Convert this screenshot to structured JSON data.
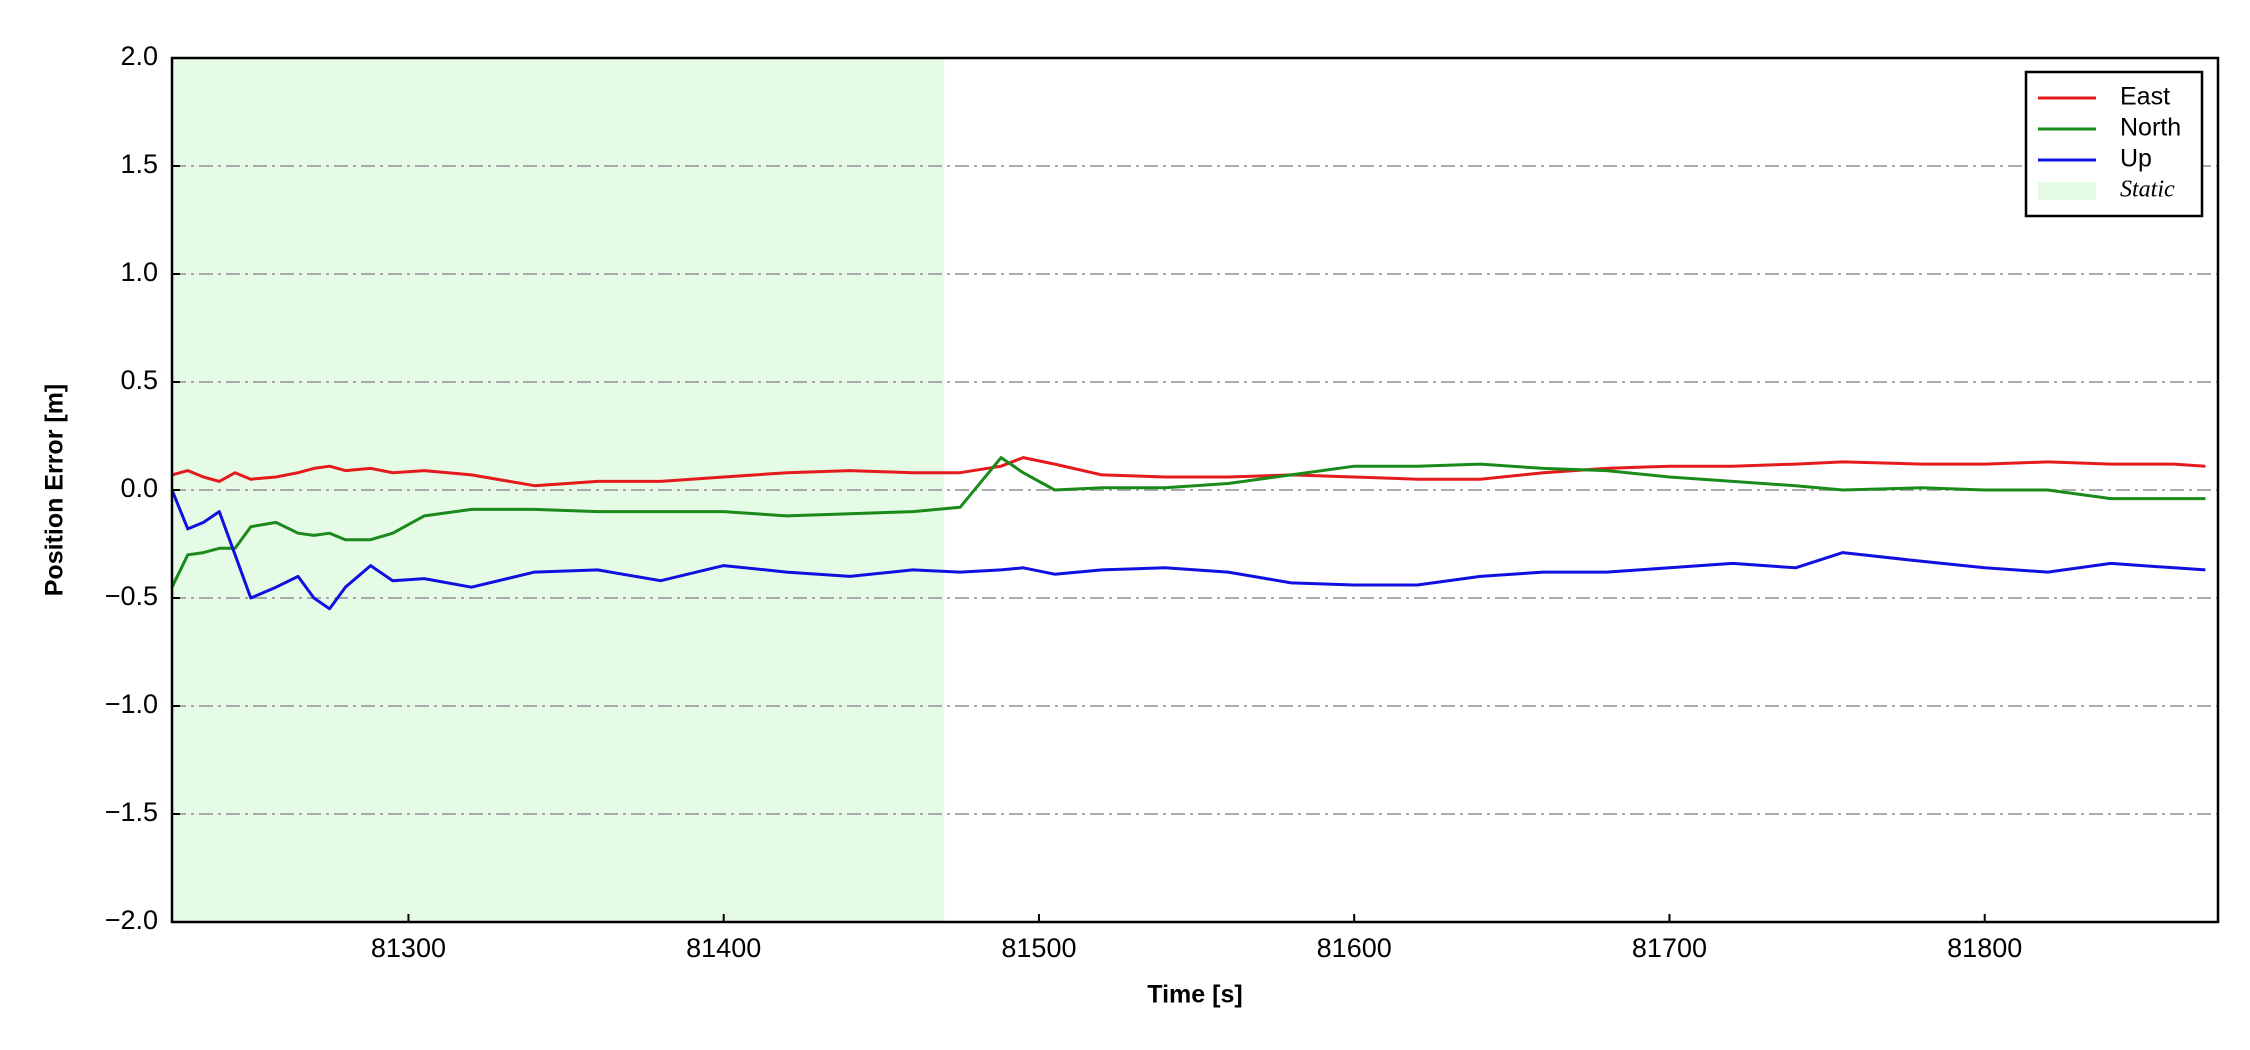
{
  "chart_data": {
    "type": "line",
    "xlabel": "Time [s]",
    "ylabel": "Position Error [m]",
    "x": [
      81225,
      81230,
      81235,
      81240,
      81245,
      81250,
      81258,
      81265,
      81270,
      81275,
      81280,
      81288,
      81295,
      81305,
      81320,
      81340,
      81360,
      81380,
      81400,
      81420,
      81440,
      81460,
      81475,
      81488,
      81495,
      81505,
      81520,
      81540,
      81560,
      81580,
      81600,
      81620,
      81640,
      81660,
      81680,
      81700,
      81720,
      81740,
      81755,
      81780,
      81800,
      81820,
      81840,
      81860,
      81870
    ],
    "series": [
      {
        "name": "East",
        "color": "#e41a1c",
        "values": [
          0.07,
          0.09,
          0.06,
          0.04,
          0.08,
          0.05,
          0.06,
          0.08,
          0.1,
          0.11,
          0.09,
          0.1,
          0.08,
          0.09,
          0.07,
          0.02,
          0.04,
          0.04,
          0.06,
          0.08,
          0.09,
          0.08,
          0.08,
          0.11,
          0.15,
          0.12,
          0.07,
          0.06,
          0.06,
          0.07,
          0.06,
          0.05,
          0.05,
          0.08,
          0.1,
          0.11,
          0.11,
          0.12,
          0.13,
          0.12,
          0.12,
          0.13,
          0.12,
          0.12,
          0.11
        ]
      },
      {
        "name": "North",
        "color": "#1a8a1a",
        "values": [
          -0.45,
          -0.3,
          -0.29,
          -0.27,
          -0.27,
          -0.17,
          -0.15,
          -0.2,
          -0.21,
          -0.2,
          -0.23,
          -0.23,
          -0.2,
          -0.12,
          -0.09,
          -0.09,
          -0.1,
          -0.1,
          -0.1,
          -0.12,
          -0.11,
          -0.1,
          -0.08,
          0.15,
          0.08,
          0.0,
          0.01,
          0.01,
          0.03,
          0.07,
          0.11,
          0.11,
          0.12,
          0.1,
          0.09,
          0.06,
          0.04,
          0.02,
          0.0,
          0.01,
          0.0,
          0.0,
          -0.04,
          -0.04,
          -0.04
        ]
      },
      {
        "name": "Up",
        "color": "#1010e0",
        "values": [
          0.0,
          -0.18,
          -0.15,
          -0.1,
          -0.3,
          -0.5,
          -0.45,
          -0.4,
          -0.5,
          -0.55,
          -0.45,
          -0.35,
          -0.42,
          -0.41,
          -0.45,
          -0.38,
          -0.37,
          -0.42,
          -0.35,
          -0.38,
          -0.4,
          -0.37,
          -0.38,
          -0.37,
          -0.36,
          -0.39,
          -0.37,
          -0.36,
          -0.38,
          -0.43,
          -0.44,
          -0.44,
          -0.4,
          -0.38,
          -0.38,
          -0.36,
          -0.34,
          -0.36,
          -0.29,
          -0.33,
          -0.36,
          -0.38,
          -0.34,
          -0.36,
          -0.37
        ]
      }
    ],
    "span": {
      "name": "Static",
      "color": "#e6fbe6",
      "x": [
        81225,
        81470
      ]
    },
    "xlim": [
      81225,
      81874
    ],
    "ylim": [
      -2,
      2
    ],
    "xticks": [
      81300,
      81400,
      81500,
      81600,
      81700,
      81800
    ],
    "yticks": [
      {
        "value": -2,
        "label": "−2.0"
      },
      {
        "value": -1.5,
        "label": "−1.5"
      },
      {
        "value": -1,
        "label": "−1.0"
      },
      {
        "value": -0.5,
        "label": "−0.5"
      },
      {
        "value": 0,
        "label": "0.0"
      },
      {
        "value": 0.5,
        "label": "0.5"
      },
      {
        "value": 1,
        "label": "1.0"
      },
      {
        "value": 1.5,
        "label": "1.5"
      },
      {
        "value": 2,
        "label": "2.0"
      }
    ],
    "grid": true,
    "legend": "upper right"
  }
}
